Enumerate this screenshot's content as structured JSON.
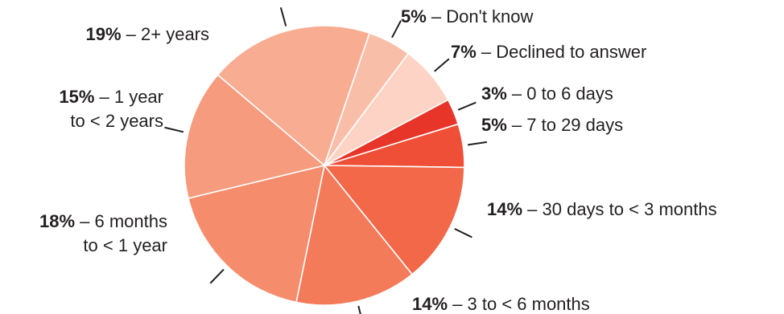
{
  "chart_data": {
    "type": "pie",
    "title": "",
    "unit": "%",
    "slices": [
      {
        "value": 3,
        "pct_label": "3%",
        "label_lines": [
          "– 0 to 6 days"
        ],
        "color": "#e8352a"
      },
      {
        "value": 5,
        "pct_label": "5%",
        "label_lines": [
          "– 7 to 29 days"
        ],
        "color": "#ee4f36"
      },
      {
        "value": 14,
        "pct_label": "14%",
        "label_lines": [
          "– 30 days to < 3 months"
        ],
        "color": "#f26848"
      },
      {
        "value": 14,
        "pct_label": "14%",
        "label_lines": [
          "– 3 to < 6 months"
        ],
        "color": "#f47b59"
      },
      {
        "value": 18,
        "pct_label": "18%",
        "label_lines": [
          "– 6 months",
          "to < 1 year"
        ],
        "color": "#f58d6d"
      },
      {
        "value": 15,
        "pct_label": "15%",
        "label_lines": [
          "– 1 year",
          "to < 2 years"
        ],
        "color": "#f69b7d"
      },
      {
        "value": 19,
        "pct_label": "19%",
        "label_lines": [
          "– 2+ years"
        ],
        "color": "#f8ad92"
      },
      {
        "value": 5,
        "pct_label": "5%",
        "label_lines": [
          "– Don't know"
        ],
        "color": "#f9bea8"
      },
      {
        "value": 7,
        "pct_label": "7%",
        "label_lines": [
          "– Declined to answer"
        ],
        "color": "#fcd3c4"
      }
    ]
  }
}
